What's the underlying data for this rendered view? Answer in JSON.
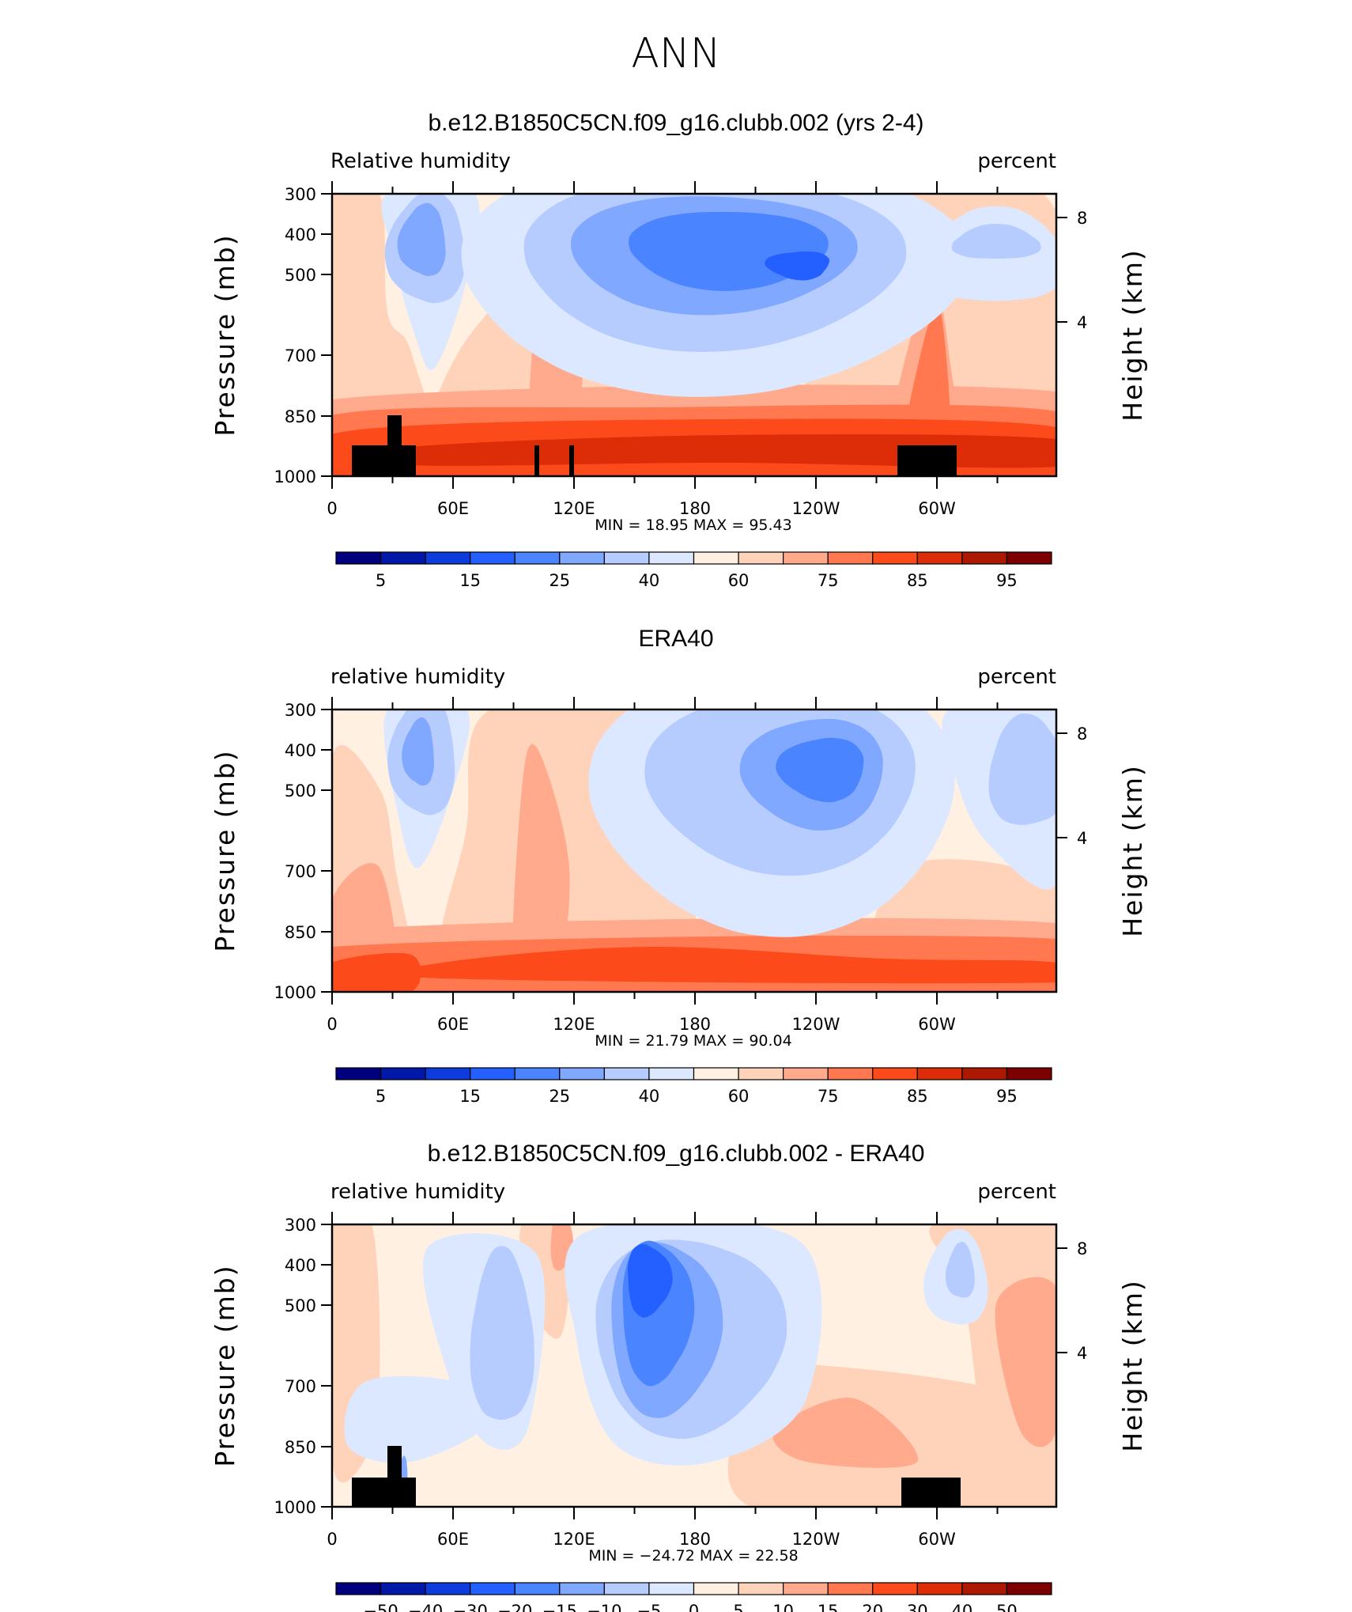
{
  "page_title": "ANN",
  "colors": {
    "rh_scale": [
      "#00007f",
      "#0018a8",
      "#0c3cdc",
      "#2460ff",
      "#4a84ff",
      "#80a8ff",
      "#b6ccff",
      "#dce8ff",
      "#fff0e2",
      "#ffd2ba",
      "#ffaa8c",
      "#ff7850",
      "#fc4a1a",
      "#dc2c08",
      "#ac1800",
      "#7c0000"
    ],
    "diff_scale": [
      "#00007f",
      "#0018a8",
      "#0c3cdc",
      "#2460ff",
      "#4a84ff",
      "#80a8ff",
      "#b6ccff",
      "#dce8ff",
      "#fff0e2",
      "#ffd2ba",
      "#ffaa8c",
      "#ff7850",
      "#fc4a1a",
      "#dc2c08",
      "#ac1800",
      "#7c0000"
    ],
    "land_mask": "#000000"
  },
  "chart_data": [
    {
      "type": "heatmap",
      "title": "b.e12.B1850C5CN.f09_g16.clubb.002 (yrs 2-4)",
      "left_label": "Relative humidity",
      "right_label": "percent",
      "ylabel": "Pressure (mb)",
      "y2label": "Height (km)",
      "x_ticks": [
        "0",
        "60E",
        "120E",
        "180",
        "120W",
        "60W"
      ],
      "y_ticks": [
        "300",
        "400",
        "500",
        "700",
        "850",
        "1000"
      ],
      "y2_ticks": [
        "8",
        "4"
      ],
      "min_max_text": "MIN = 18.95 MAX = 95.43",
      "min": 18.95,
      "max": 95.43,
      "colorbar_labels": [
        "5",
        "15",
        "25",
        "40",
        "60",
        "75",
        "85",
        "95"
      ],
      "scale": "rh"
    },
    {
      "type": "heatmap",
      "title": "ERA40",
      "left_label": "relative humidity",
      "right_label": "percent",
      "ylabel": "Pressure (mb)",
      "y2label": "Height (km)",
      "x_ticks": [
        "0",
        "60E",
        "120E",
        "180",
        "120W",
        "60W"
      ],
      "y_ticks": [
        "300",
        "400",
        "500",
        "700",
        "850",
        "1000"
      ],
      "y2_ticks": [
        "8",
        "4"
      ],
      "min_max_text": "MIN = 21.79 MAX = 90.04",
      "min": 21.79,
      "max": 90.04,
      "colorbar_labels": [
        "5",
        "15",
        "25",
        "40",
        "60",
        "75",
        "85",
        "95"
      ],
      "scale": "rh"
    },
    {
      "type": "heatmap",
      "title": "b.e12.B1850C5CN.f09_g16.clubb.002 - ERA40",
      "left_label": "relative humidity",
      "right_label": "percent",
      "ylabel": "Pressure (mb)",
      "y2label": "Height (km)",
      "x_ticks": [
        "0",
        "60E",
        "120E",
        "180",
        "120W",
        "60W"
      ],
      "y_ticks": [
        "300",
        "400",
        "500",
        "700",
        "850",
        "1000"
      ],
      "y2_ticks": [
        "8",
        "4"
      ],
      "min_max_text": "MIN = −24.72 MAX = 22.58",
      "min": -24.72,
      "max": 22.58,
      "colorbar_labels": [
        "−50",
        "−40",
        "−30",
        "−20",
        "−15",
        "−10",
        "−5",
        "0",
        "5",
        "10",
        "15",
        "20",
        "30",
        "40",
        "50"
      ],
      "scale": "diff"
    }
  ]
}
